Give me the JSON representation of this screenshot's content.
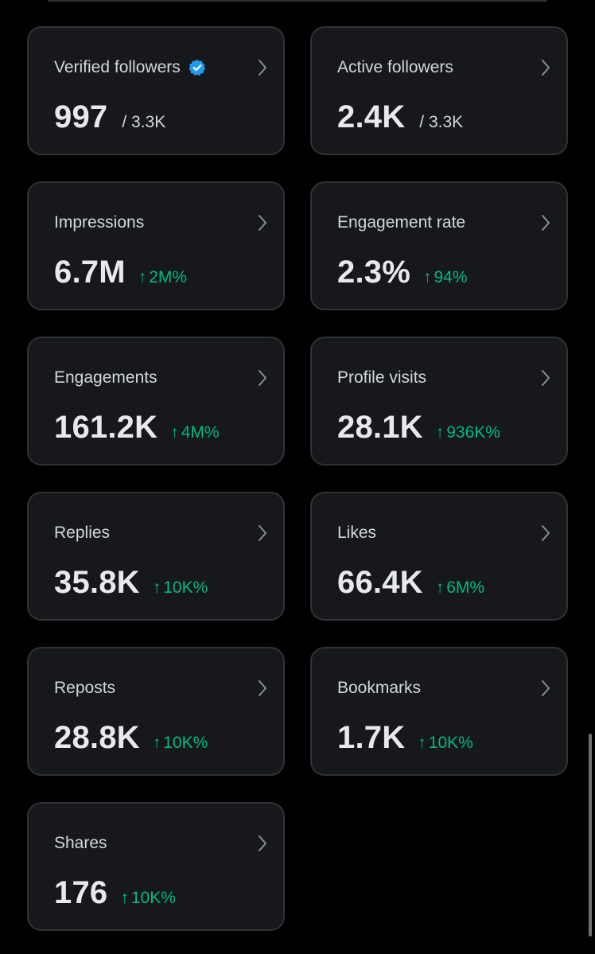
{
  "cards": [
    {
      "label": "Verified followers",
      "value": "997",
      "secondary": "/ 3.3K",
      "verified": true
    },
    {
      "label": "Active followers",
      "value": "2.4K",
      "secondary": "/ 3.3K"
    },
    {
      "label": "Impressions",
      "value": "6.7M",
      "delta": "2M%"
    },
    {
      "label": "Engagement rate",
      "value": "2.3%",
      "delta": "94%"
    },
    {
      "label": "Engagements",
      "value": "161.2K",
      "delta": "4M%"
    },
    {
      "label": "Profile visits",
      "value": "28.1K",
      "delta": "936K%"
    },
    {
      "label": "Replies",
      "value": "35.8K",
      "delta": "10K%"
    },
    {
      "label": "Likes",
      "value": "66.4K",
      "delta": "6M%"
    },
    {
      "label": "Reposts",
      "value": "28.8K",
      "delta": "10K%"
    },
    {
      "label": "Bookmarks",
      "value": "1.7K",
      "delta": "10K%"
    },
    {
      "label": "Shares",
      "value": "176",
      "delta": "10K%"
    }
  ],
  "delta_arrow": "↑",
  "icons": {
    "chevron": "chevron-right-icon",
    "verified": "verified-badge-icon",
    "delta": "arrow-up-icon"
  },
  "colors": {
    "background": "#000000",
    "card": "#16181c",
    "card_border": "#2f3336",
    "positive": "#00ba7c",
    "verified": "#1d9bf0",
    "text_primary": "#e7e9ea",
    "text_secondary": "#d4d7da"
  }
}
